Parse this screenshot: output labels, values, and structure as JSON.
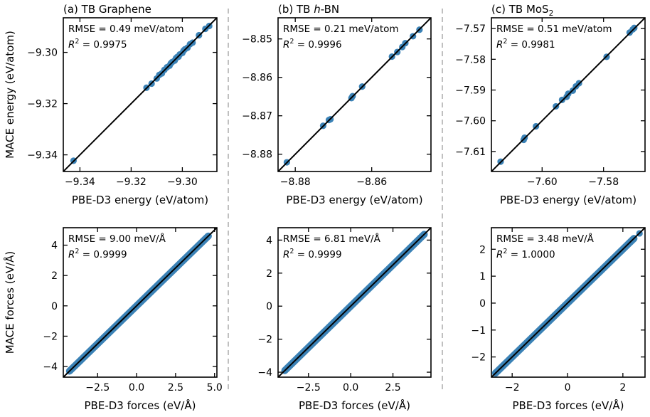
{
  "chart_data": [
    {
      "type": "scatter",
      "title": "(a) TB Graphene",
      "xlabel": "PBE-D3 energy (eV/atom)",
      "ylabel": "MACE energy (eV/atom)",
      "xlim": [
        -9.3465,
        -9.2865
      ],
      "ylim": [
        -9.3465,
        -9.2865
      ],
      "xticks": [
        -9.34,
        -9.32,
        -9.3
      ],
      "yticks": [
        -9.34,
        -9.32,
        -9.3
      ],
      "xtick_labels": [
        "−9.34",
        "−9.32",
        "−9.30"
      ],
      "ytick_labels": [
        "−9.34",
        "−9.32",
        "−9.30"
      ],
      "annotation": {
        "rmse": "RMSE = 0.49 meV/atom",
        "r2_label": "R",
        "r2_sup": "2",
        "r2_value": " = 0.9975"
      },
      "x": [
        -9.3425,
        -9.314,
        -9.312,
        -9.31,
        -9.309,
        -9.308,
        -9.307,
        -9.306,
        -9.305,
        -9.3045,
        -9.304,
        -9.303,
        -9.3025,
        -9.302,
        -9.3015,
        -9.301,
        -9.3,
        -9.2995,
        -9.299,
        -9.298,
        -9.297,
        -9.296,
        -9.2935,
        -9.291,
        -9.2895
      ],
      "y": [
        -9.3423,
        -9.3138,
        -9.3122,
        -9.3102,
        -9.3088,
        -9.3082,
        -9.3068,
        -9.3058,
        -9.3052,
        -9.3043,
        -9.3038,
        -9.3032,
        -9.3023,
        -9.3018,
        -9.3017,
        -9.3008,
        -9.3002,
        -9.2993,
        -9.2988,
        -9.2982,
        -9.2968,
        -9.2962,
        -9.2933,
        -9.2908,
        -9.2897
      ]
    },
    {
      "type": "scatter",
      "title": "(b) TB h-BN",
      "title_parts": {
        "prefix": "(b) TB ",
        "italic": "h",
        "suffix": "-BN"
      },
      "xlabel": "PBE-D3 energy (eV/atom)",
      "ylabel": "",
      "xlim": [
        -8.8845,
        -8.8445
      ],
      "ylim": [
        -8.8845,
        -8.8445
      ],
      "xticks": [
        -8.88,
        -8.86
      ],
      "yticks": [
        -8.88,
        -8.87,
        -8.86,
        -8.85
      ],
      "xtick_labels": [
        "−8.88",
        "−8.86"
      ],
      "ytick_labels": [
        "−8.88",
        "−8.87",
        "−8.86",
        "−8.85"
      ],
      "annotation": {
        "rmse": "RMSE = 0.21 meV/atom",
        "r2_label": "R",
        "r2_sup": "2",
        "r2_value": " = 0.9996"
      },
      "x": [
        -8.8822,
        -8.8727,
        -8.8712,
        -8.8708,
        -8.8653,
        -8.865,
        -8.8625,
        -8.8547,
        -8.8533,
        -8.852,
        -8.8512,
        -8.8492,
        -8.8475
      ],
      "y": [
        -8.8821,
        -8.8726,
        -8.8711,
        -8.8709,
        -8.8654,
        -8.8649,
        -8.8624,
        -8.8546,
        -8.8534,
        -8.8521,
        -8.8511,
        -8.8493,
        -8.8476
      ]
    },
    {
      "type": "scatter",
      "title": "(c) TB MoS2",
      "title_parts": {
        "prefix": "(c) TB MoS",
        "sub": "2"
      },
      "xlabel": "PBE-D3 energy (eV/atom)",
      "ylabel": "",
      "xlim": [
        -7.6165,
        -7.5665
      ],
      "ylim": [
        -7.6165,
        -7.5665
      ],
      "xticks": [
        -7.6,
        -7.58
      ],
      "yticks": [
        -7.61,
        -7.6,
        -7.59,
        -7.58,
        -7.57
      ],
      "xtick_labels": [
        "−7.60",
        "−7.58"
      ],
      "ytick_labels": [
        "−7.61",
        "−7.60",
        "−7.59",
        "−7.58",
        "−7.57"
      ],
      "annotation": {
        "rmse": "RMSE = 0.51 meV/atom",
        "r2_label": "R",
        "r2_sup": "2",
        "r2_value": " = 0.9981"
      },
      "x": [
        -7.6135,
        -7.606,
        -7.6057,
        -7.602,
        -7.5955,
        -7.5935,
        -7.592,
        -7.5915,
        -7.59,
        -7.589,
        -7.588,
        -7.579,
        -7.5715,
        -7.5705,
        -7.57
      ],
      "y": [
        -7.6133,
        -7.6062,
        -7.6055,
        -7.6018,
        -7.5953,
        -7.5932,
        -7.5922,
        -7.5912,
        -7.5902,
        -7.5888,
        -7.5878,
        -7.5792,
        -7.5713,
        -7.5703,
        -7.5698
      ]
    },
    {
      "type": "scatter",
      "title": "",
      "xlabel": "PBE-D3 forces (eV/Å)",
      "ylabel": "MACE forces (eV/Å)",
      "xlim": [
        -4.7,
        5.15
      ],
      "ylim": [
        -4.7,
        5.15
      ],
      "xticks": [
        -2.5,
        0.0,
        2.5,
        5.0
      ],
      "yticks": [
        -4,
        -2,
        0,
        2,
        4
      ],
      "xtick_labels": [
        "−2.5",
        "0.0",
        "2.5",
        "5.0"
      ],
      "ytick_labels": [
        "−4",
        "−2",
        "0",
        "2",
        "4"
      ],
      "annotation": {
        "rmse": "RMSE = 9.00 meV/Å",
        "r2_label": "R",
        "r2_sup": "2",
        "r2_value": " = 0.9999"
      },
      "dense_range": [
        -4.3,
        4.6
      ],
      "x": [
        -4.3,
        -4.1,
        -3.8,
        4.4,
        4.6
      ],
      "y": [
        -4.28,
        -4.12,
        -3.78,
        4.42,
        4.58
      ]
    },
    {
      "type": "scatter",
      "title": "",
      "xlabel": "PBE-D3 forces (eV/Å)",
      "ylabel": "",
      "xlim": [
        -4.3,
        4.75
      ],
      "ylim": [
        -4.3,
        4.75
      ],
      "xticks": [
        -2.5,
        0.0,
        2.5
      ],
      "yticks": [
        -4,
        -2,
        0,
        2,
        4
      ],
      "xtick_labels": [
        "−2.5",
        "0.0",
        "2.5"
      ],
      "ytick_labels": [
        "−4",
        "−2",
        "0",
        "2",
        "4"
      ],
      "annotation": {
        "rmse": "RMSE = 6.81 meV/Å",
        "r2_label": "R",
        "r2_sup": "2",
        "r2_value": " = 0.9999"
      },
      "dense_range": [
        -3.9,
        4.35
      ],
      "x": [
        -3.9,
        -3.75,
        4.2,
        4.35
      ],
      "y": [
        -3.88,
        -3.73,
        4.21,
        4.33
      ]
    },
    {
      "type": "scatter",
      "title": "",
      "xlabel": "PBE-D3 forces (eV/Å)",
      "ylabel": "",
      "xlim": [
        -2.75,
        2.8
      ],
      "ylim": [
        -2.75,
        2.8
      ],
      "xticks": [
        -2,
        0,
        2
      ],
      "yticks": [
        -2,
        -1,
        0,
        1,
        2
      ],
      "xtick_labels": [
        "−2",
        "0",
        "2"
      ],
      "ytick_labels": [
        "−2",
        "−1",
        "0",
        "1",
        "2"
      ],
      "annotation": {
        "rmse": "RMSE = 3.48 meV/Å",
        "r2_label": "R",
        "r2_sup": "2",
        "r2_value": " = 1.0000"
      },
      "dense_range": [
        -2.6,
        2.4
      ],
      "x": [
        -2.6,
        -2.45,
        2.35,
        2.6
      ],
      "y": [
        -2.58,
        -2.46,
        2.36,
        2.59
      ]
    }
  ],
  "colors": {
    "points": "#3b82b6",
    "line": "#000000",
    "separator": "#b0b0b0"
  }
}
